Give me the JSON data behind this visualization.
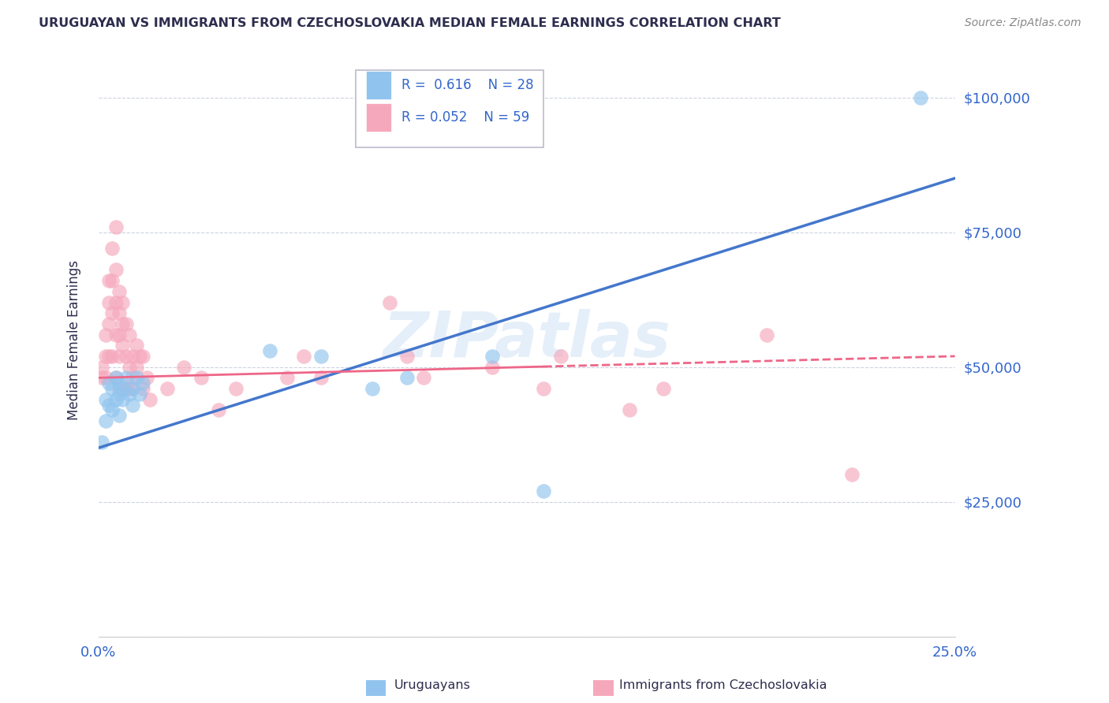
{
  "title": "URUGUAYAN VS IMMIGRANTS FROM CZECHOSLOVAKIA MEDIAN FEMALE EARNINGS CORRELATION CHART",
  "source": "Source: ZipAtlas.com",
  "ylabel": "Median Female Earnings",
  "xlim": [
    0.0,
    0.25
  ],
  "ylim": [
    0,
    110000
  ],
  "yticks": [
    0,
    25000,
    50000,
    75000,
    100000
  ],
  "ytick_labels": [
    "",
    "$25,000",
    "$50,000",
    "$75,000",
    "$100,000"
  ],
  "xticks": [
    0.0,
    0.05,
    0.1,
    0.15,
    0.2,
    0.25
  ],
  "xtick_labels": [
    "0.0%",
    "",
    "",
    "",
    "",
    "25.0%"
  ],
  "legend_r_blue": "0.616",
  "legend_n_blue": "28",
  "legend_r_pink": "0.052",
  "legend_n_pink": "59",
  "blue_color": "#90C4EE",
  "pink_color": "#F5A8BC",
  "blue_line_color": "#4477CC",
  "pink_line_color": "#EE6688",
  "title_color": "#2D2D4E",
  "axis_color": "#3366CC",
  "watermark": "ZIPatlas",
  "blue_x": [
    0.001,
    0.002,
    0.002,
    0.003,
    0.003,
    0.004,
    0.004,
    0.005,
    0.005,
    0.006,
    0.006,
    0.006,
    0.007,
    0.007,
    0.008,
    0.009,
    0.01,
    0.01,
    0.011,
    0.012,
    0.013,
    0.05,
    0.065,
    0.08,
    0.09,
    0.115,
    0.13,
    0.24
  ],
  "blue_y": [
    36000,
    40000,
    44000,
    43000,
    47000,
    42000,
    46000,
    44000,
    48000,
    45000,
    47000,
    41000,
    46000,
    44000,
    48000,
    45000,
    46000,
    43000,
    48000,
    45000,
    47000,
    53000,
    52000,
    46000,
    48000,
    52000,
    27000,
    100000
  ],
  "pink_x": [
    0.001,
    0.001,
    0.002,
    0.002,
    0.002,
    0.003,
    0.003,
    0.003,
    0.003,
    0.004,
    0.004,
    0.004,
    0.004,
    0.005,
    0.005,
    0.005,
    0.005,
    0.005,
    0.006,
    0.006,
    0.006,
    0.006,
    0.006,
    0.007,
    0.007,
    0.007,
    0.008,
    0.008,
    0.008,
    0.009,
    0.009,
    0.009,
    0.01,
    0.01,
    0.011,
    0.011,
    0.012,
    0.013,
    0.013,
    0.014,
    0.015,
    0.02,
    0.025,
    0.03,
    0.035,
    0.04,
    0.055,
    0.06,
    0.065,
    0.085,
    0.09,
    0.095,
    0.115,
    0.13,
    0.135,
    0.155,
    0.165,
    0.195,
    0.22
  ],
  "pink_y": [
    50000,
    48000,
    52000,
    56000,
    48000,
    62000,
    66000,
    58000,
    52000,
    72000,
    66000,
    60000,
    52000,
    76000,
    68000,
    62000,
    56000,
    48000,
    64000,
    60000,
    56000,
    52000,
    46000,
    62000,
    58000,
    54000,
    58000,
    52000,
    46000,
    56000,
    50000,
    46000,
    52000,
    48000,
    54000,
    50000,
    52000,
    46000,
    52000,
    48000,
    44000,
    46000,
    50000,
    48000,
    42000,
    46000,
    48000,
    52000,
    48000,
    62000,
    52000,
    48000,
    50000,
    46000,
    52000,
    42000,
    46000,
    56000,
    30000
  ]
}
